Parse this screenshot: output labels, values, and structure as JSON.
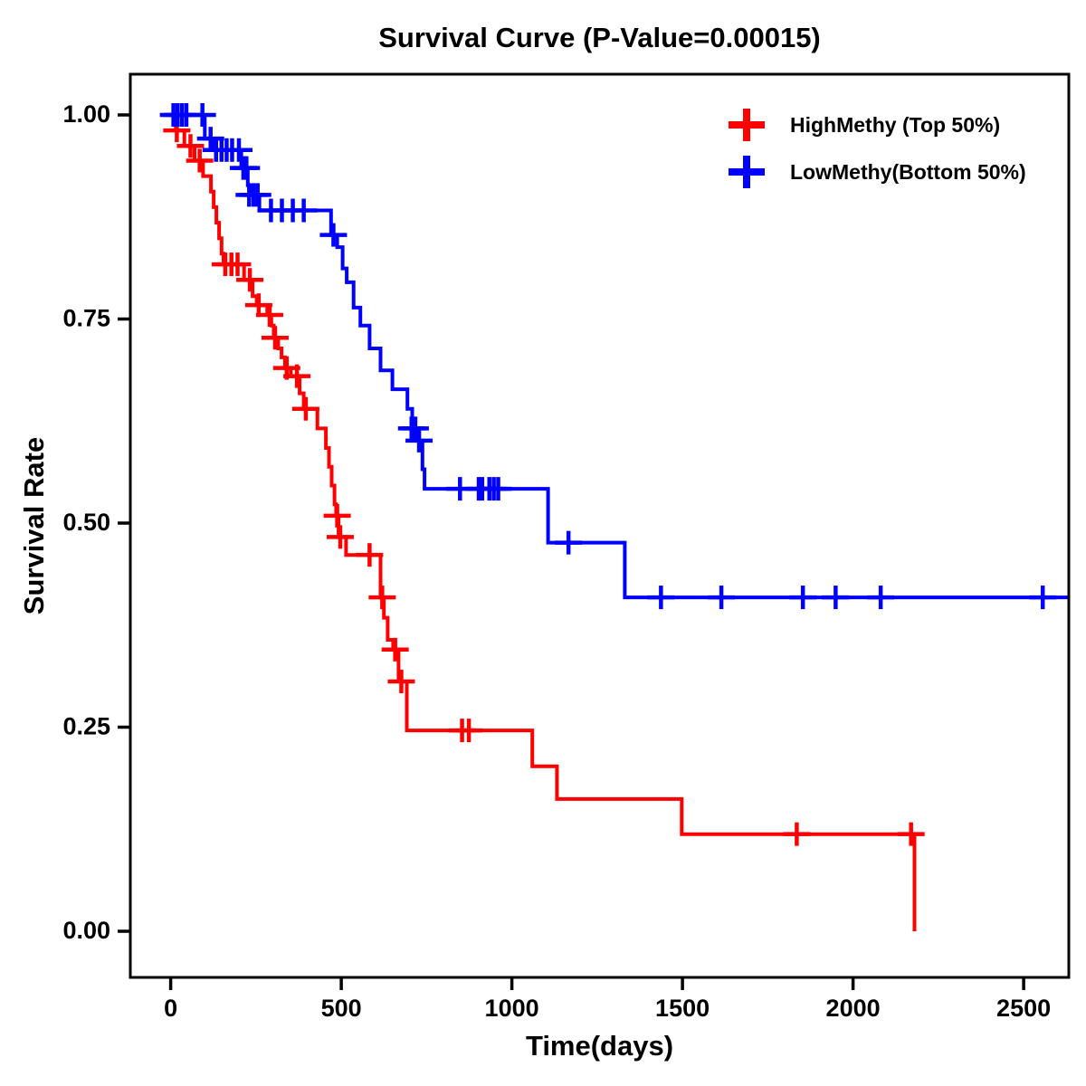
{
  "chart_data": {
    "type": "line",
    "subtype": "kaplan-meier-step",
    "title": "Survival Curve (P-Value=0.00015)",
    "p_value": "0.00015",
    "xlabel": "Time(days)",
    "ylabel": "Survival Rate",
    "xlim": [
      0,
      2630
    ],
    "ylim": [
      0.0,
      1.0
    ],
    "xticks": [
      0,
      500,
      1000,
      1500,
      2000,
      2500
    ],
    "yticks": [
      1.0,
      0.75,
      0.5,
      0.25,
      0.0
    ],
    "grid": false,
    "legend_position": "top-right",
    "series": [
      {
        "name": "HighMethy (Top 50%)",
        "color": "#FF0000",
        "end_time": 2180,
        "steps": [
          [
            0,
            1.0
          ],
          [
            15,
            0.981
          ],
          [
            40,
            0.962
          ],
          [
            70,
            0.944
          ],
          [
            95,
            0.925
          ],
          [
            118,
            0.906
          ],
          [
            126,
            0.887
          ],
          [
            134,
            0.868
          ],
          [
            142,
            0.849
          ],
          [
            149,
            0.83
          ],
          [
            155,
            0.817
          ],
          [
            215,
            0.798
          ],
          [
            240,
            0.778
          ],
          [
            252,
            0.767
          ],
          [
            283,
            0.755
          ],
          [
            295,
            0.742
          ],
          [
            302,
            0.727
          ],
          [
            315,
            0.714
          ],
          [
            325,
            0.703
          ],
          [
            335,
            0.69
          ],
          [
            352,
            0.68
          ],
          [
            378,
            0.659
          ],
          [
            390,
            0.64
          ],
          [
            430,
            0.616
          ],
          [
            455,
            0.592
          ],
          [
            464,
            0.569
          ],
          [
            472,
            0.546
          ],
          [
            480,
            0.523
          ],
          [
            485,
            0.509
          ],
          [
            492,
            0.483
          ],
          [
            514,
            0.461
          ],
          [
            615,
            0.409
          ],
          [
            625,
            0.384
          ],
          [
            636,
            0.357
          ],
          [
            652,
            0.345
          ],
          [
            668,
            0.306
          ],
          [
            692,
            0.246
          ],
          [
            1060,
            0.202
          ],
          [
            1132,
            0.162
          ],
          [
            1498,
            0.119
          ],
          [
            2180,
            0.0
          ]
        ],
        "censors": [
          [
            18,
            0.981
          ],
          [
            58,
            0.962
          ],
          [
            85,
            0.944
          ],
          [
            160,
            0.817
          ],
          [
            178,
            0.817
          ],
          [
            196,
            0.817
          ],
          [
            232,
            0.798
          ],
          [
            258,
            0.767
          ],
          [
            290,
            0.755
          ],
          [
            306,
            0.727
          ],
          [
            340,
            0.69
          ],
          [
            370,
            0.68
          ],
          [
            396,
            0.64
          ],
          [
            488,
            0.509
          ],
          [
            497,
            0.483
          ],
          [
            583,
            0.461
          ],
          [
            620,
            0.409
          ],
          [
            658,
            0.345
          ],
          [
            676,
            0.306
          ],
          [
            854,
            0.246
          ],
          [
            874,
            0.246
          ],
          [
            1835,
            0.119
          ],
          [
            2170,
            0.119
          ]
        ]
      },
      {
        "name": "LowMethy(Bottom 50%)",
        "color": "#0000FF",
        "end_time": 2630,
        "steps": [
          [
            0,
            1.0
          ],
          [
            100,
            0.971
          ],
          [
            125,
            0.957
          ],
          [
            207,
            0.935
          ],
          [
            226,
            0.914
          ],
          [
            232,
            0.902
          ],
          [
            260,
            0.883
          ],
          [
            470,
            0.853
          ],
          [
            488,
            0.838
          ],
          [
            504,
            0.812
          ],
          [
            516,
            0.795
          ],
          [
            536,
            0.764
          ],
          [
            556,
            0.742
          ],
          [
            583,
            0.714
          ],
          [
            615,
            0.687
          ],
          [
            650,
            0.664
          ],
          [
            694,
            0.64
          ],
          [
            708,
            0.616
          ],
          [
            724,
            0.601
          ],
          [
            738,
            0.566
          ],
          [
            744,
            0.542
          ],
          [
            1106,
            0.476
          ],
          [
            1331,
            0.409
          ]
        ],
        "censors": [
          [
            8,
            1.0
          ],
          [
            20,
            1.0
          ],
          [
            33,
            1.0
          ],
          [
            46,
            1.0
          ],
          [
            93,
            1.0
          ],
          [
            117,
            0.971
          ],
          [
            133,
            0.957
          ],
          [
            149,
            0.957
          ],
          [
            164,
            0.957
          ],
          [
            180,
            0.957
          ],
          [
            200,
            0.957
          ],
          [
            213,
            0.935
          ],
          [
            222,
            0.935
          ],
          [
            230,
            0.902
          ],
          [
            243,
            0.902
          ],
          [
            255,
            0.902
          ],
          [
            294,
            0.883
          ],
          [
            326,
            0.883
          ],
          [
            358,
            0.883
          ],
          [
            390,
            0.883
          ],
          [
            477,
            0.853
          ],
          [
            706,
            0.616
          ],
          [
            717,
            0.616
          ],
          [
            728,
            0.601
          ],
          [
            848,
            0.542
          ],
          [
            903,
            0.542
          ],
          [
            913,
            0.542
          ],
          [
            934,
            0.542
          ],
          [
            947,
            0.542
          ],
          [
            960,
            0.542
          ],
          [
            1166,
            0.476
          ],
          [
            1437,
            0.409
          ],
          [
            1614,
            0.409
          ],
          [
            1853,
            0.409
          ],
          [
            1949,
            0.409
          ],
          [
            2081,
            0.409
          ],
          [
            2556,
            0.409
          ]
        ]
      }
    ]
  }
}
